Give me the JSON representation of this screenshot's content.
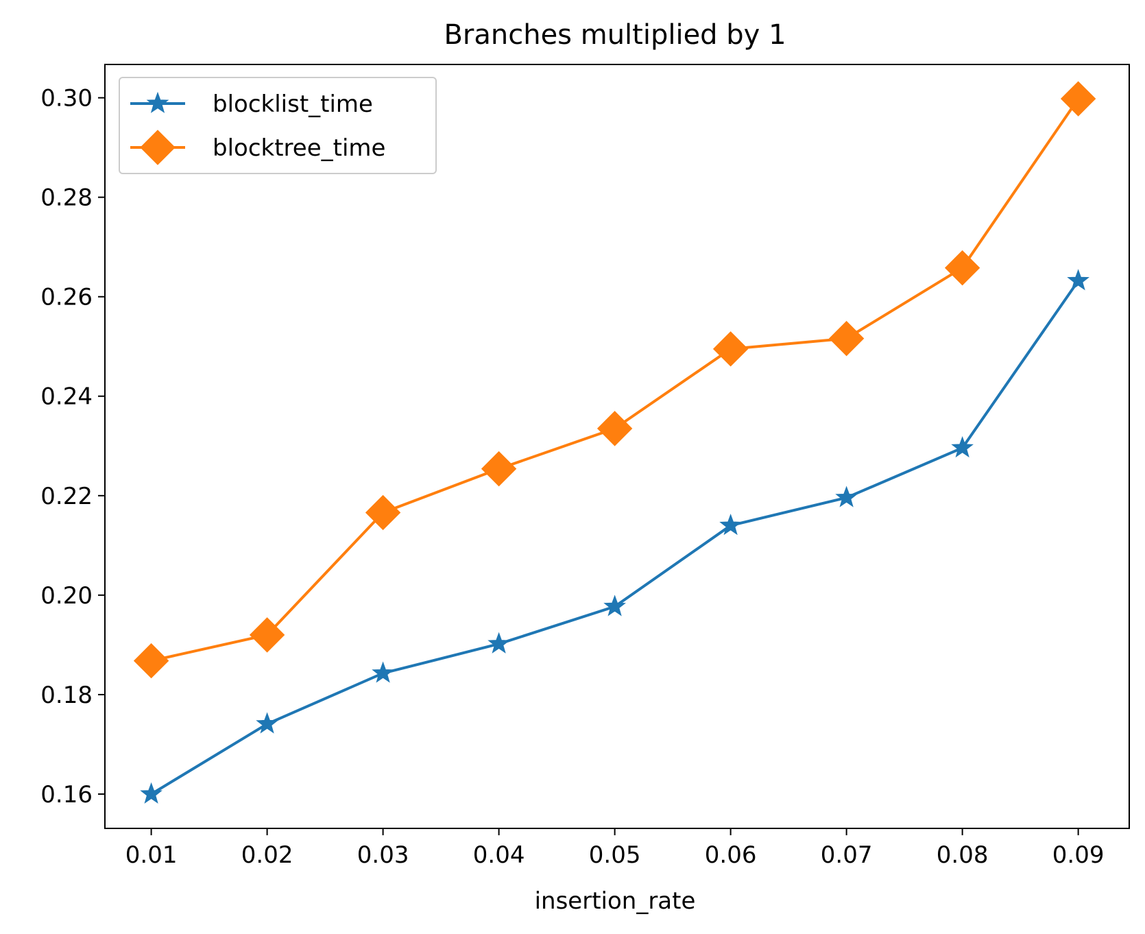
{
  "chart_data": {
    "type": "line",
    "title": "Branches multiplied by 1",
    "xlabel": "insertion_rate",
    "ylabel": "",
    "x": [
      0.01,
      0.02,
      0.03,
      0.04,
      0.05,
      0.06,
      0.07,
      0.08,
      0.09
    ],
    "x_tick_labels": [
      "0.01",
      "0.02",
      "0.03",
      "0.04",
      "0.05",
      "0.06",
      "0.07",
      "0.08",
      "0.09"
    ],
    "y_ticks": [
      0.16,
      0.18,
      0.2,
      0.22,
      0.24,
      0.26,
      0.28,
      0.3
    ],
    "y_tick_labels": [
      "0.16",
      "0.18",
      "0.20",
      "0.22",
      "0.24",
      "0.26",
      "0.28",
      "0.30"
    ],
    "xlim": [
      0.006,
      0.0944
    ],
    "ylim": [
      0.1531,
      0.3067
    ],
    "grid": false,
    "legend_position": "upper-left",
    "series": [
      {
        "name": "blocklist_time",
        "color": "#1f77b4",
        "marker": "star",
        "values": [
          0.16,
          0.1741,
          0.1843,
          0.1902,
          0.1977,
          0.214,
          0.2196,
          0.2296,
          0.2632
        ]
      },
      {
        "name": "blocktree_time",
        "color": "#ff7f0e",
        "marker": "diamond",
        "values": [
          0.1868,
          0.192,
          0.2166,
          0.2254,
          0.2335,
          0.2495,
          0.2516,
          0.2658,
          0.2998
        ]
      }
    ]
  }
}
